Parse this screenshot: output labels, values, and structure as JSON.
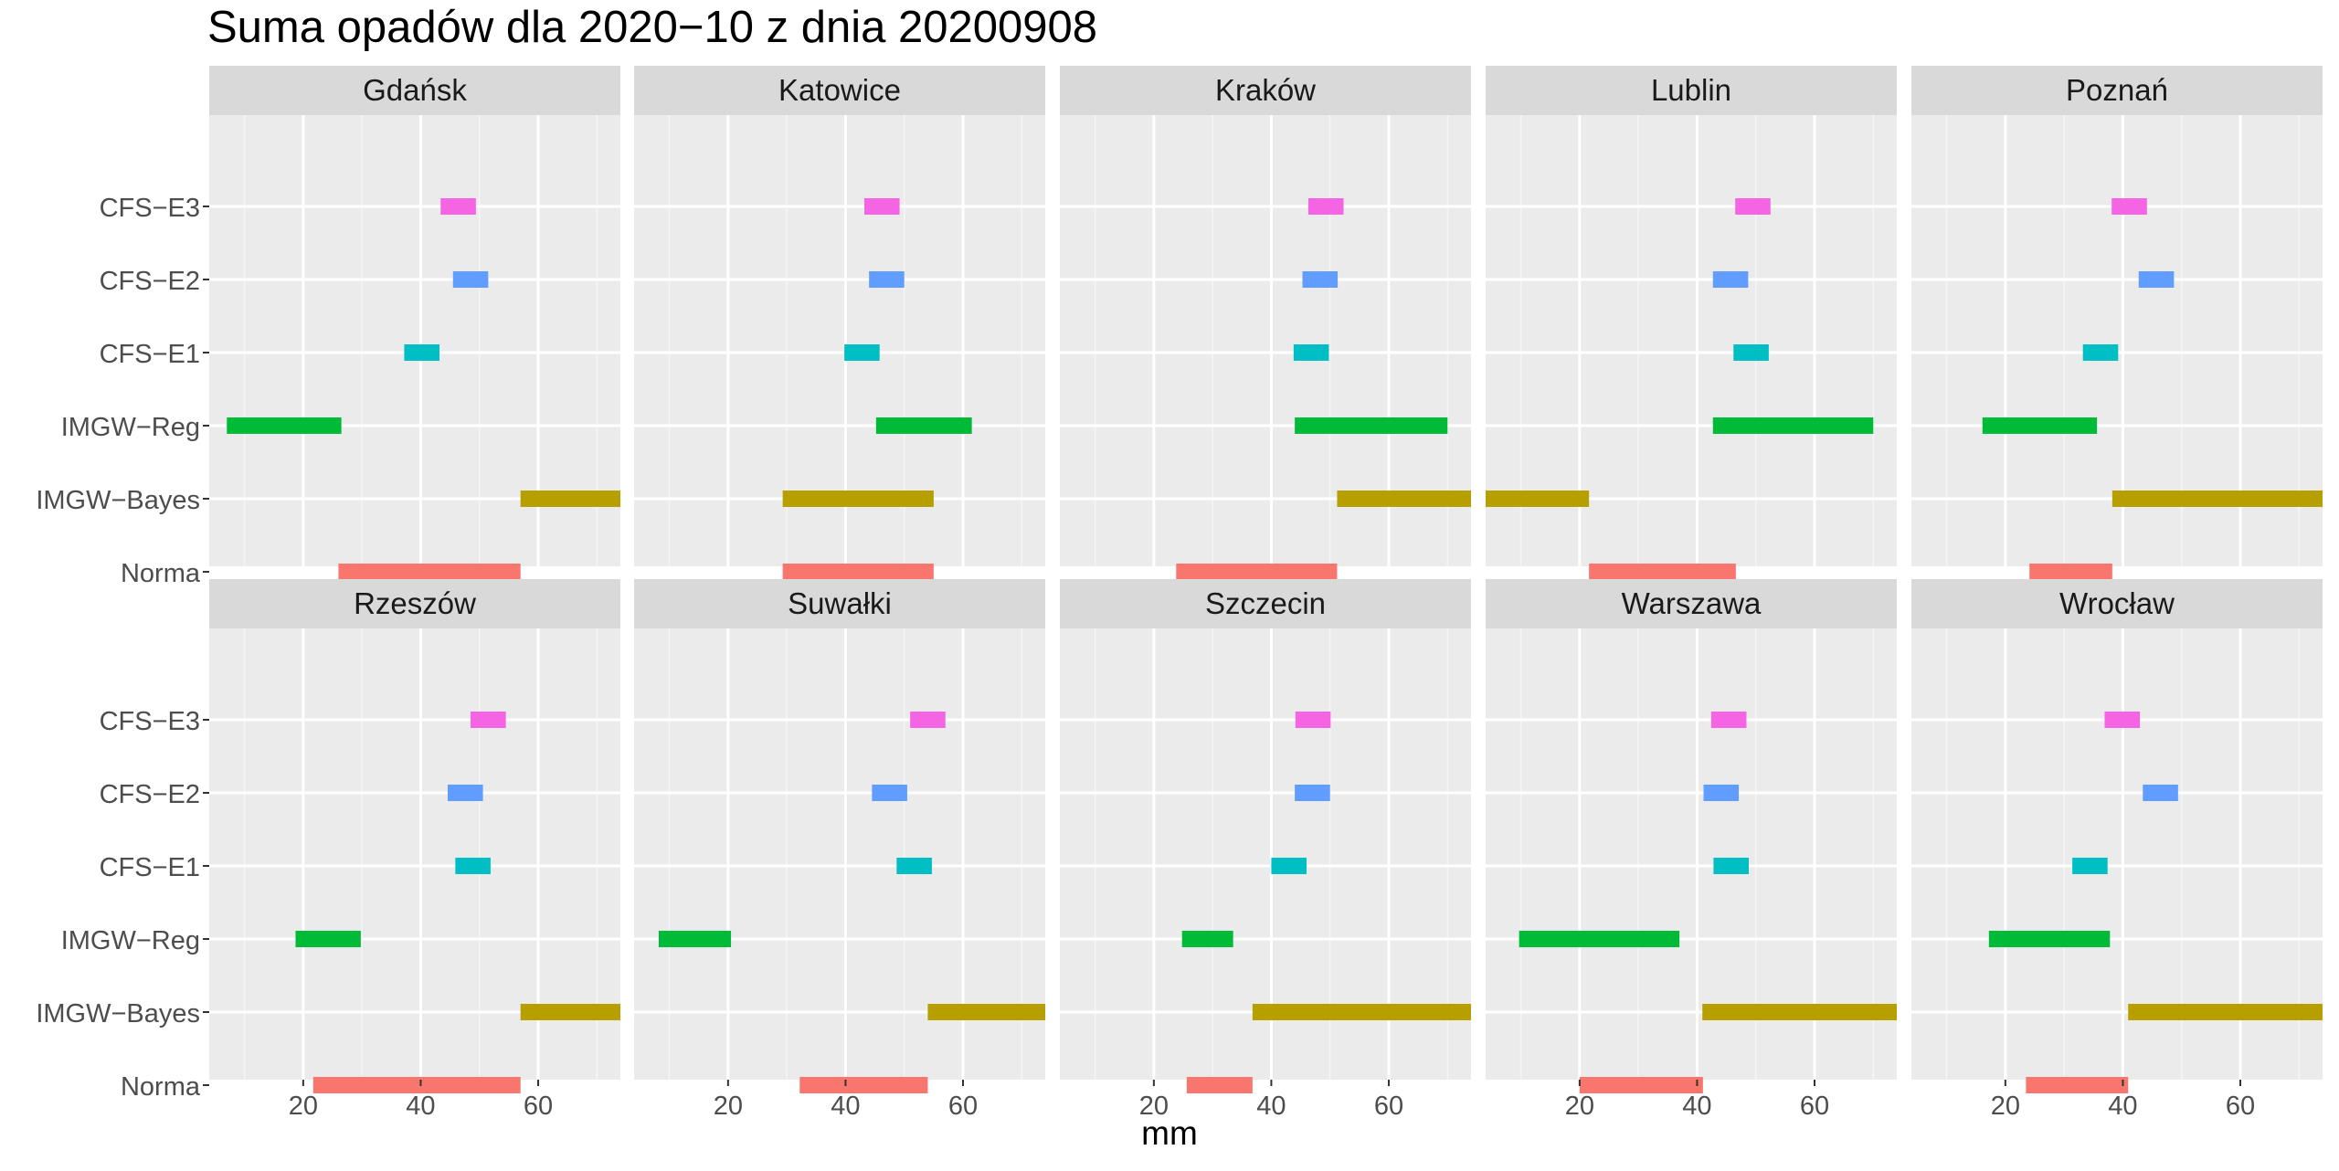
{
  "chart_data": {
    "type": "bar",
    "subtype": "faceted-range",
    "title": "Suma opadów dla 2020−10 z dnia 20200908",
    "xlabel": "mm",
    "ylabel": "",
    "xlim": [
      4,
      74
    ],
    "xticks": [
      20,
      40,
      60
    ],
    "grid": true,
    "legend": "none",
    "categories": [
      "CFS−E3",
      "CFS−E2",
      "CFS−E1",
      "IMGW−Reg",
      "IMGW−Bayes",
      "Norma"
    ],
    "colors": {
      "CFS−E3": "#F564E3",
      "CFS−E2": "#619CFF",
      "CFS−E1": "#00BFC4",
      "IMGW−Reg": "#00BA38",
      "IMGW−Bayes": "#B79F00",
      "Norma": "#F8766D"
    },
    "panels": [
      {
        "name": "Gdańsk",
        "ranges": {
          "CFS−E3": [
            43.4,
            49.4
          ],
          "CFS−E2": [
            45.5,
            51.5
          ],
          "CFS−E1": [
            37.2,
            43.2
          ],
          "IMGW−Reg": [
            7.0,
            26.5
          ],
          "IMGW−Bayes": [
            57.0,
            74.0
          ],
          "Norma": [
            26.0,
            57.0
          ]
        }
      },
      {
        "name": "Katowice",
        "ranges": {
          "CFS−E3": [
            43.2,
            49.2
          ],
          "CFS−E2": [
            44.0,
            50.0
          ],
          "CFS−E1": [
            39.8,
            45.8
          ],
          "IMGW−Reg": [
            45.2,
            61.5
          ],
          "IMGW−Bayes": [
            29.3,
            55.0
          ],
          "Norma": [
            29.3,
            55.0
          ]
        }
      },
      {
        "name": "Kraków",
        "ranges": {
          "CFS−E3": [
            46.3,
            52.3
          ],
          "CFS−E2": [
            45.3,
            51.3
          ],
          "CFS−E1": [
            43.8,
            49.8
          ],
          "IMGW−Reg": [
            44.0,
            70.0
          ],
          "IMGW−Bayes": [
            51.2,
            74.0
          ],
          "Norma": [
            23.8,
            51.2
          ]
        }
      },
      {
        "name": "Lublin",
        "ranges": {
          "CFS−E3": [
            46.5,
            52.5
          ],
          "CFS−E2": [
            42.7,
            48.7
          ],
          "CFS−E1": [
            46.2,
            52.2
          ],
          "IMGW−Reg": [
            42.7,
            70.0
          ],
          "IMGW−Bayes": [
            4.0,
            21.6
          ],
          "Norma": [
            21.6,
            46.6
          ]
        }
      },
      {
        "name": "Poznań",
        "ranges": {
          "CFS−E3": [
            38.1,
            44.1
          ],
          "CFS−E2": [
            42.7,
            48.7
          ],
          "CFS−E1": [
            33.2,
            39.2
          ],
          "IMGW−Reg": [
            16.1,
            35.6
          ],
          "IMGW−Bayes": [
            38.2,
            74.0
          ],
          "Norma": [
            24.1,
            38.2
          ]
        }
      },
      {
        "name": "Rzeszów",
        "ranges": {
          "CFS−E3": [
            48.5,
            54.5
          ],
          "CFS−E2": [
            44.6,
            50.6
          ],
          "CFS−E1": [
            45.9,
            51.9
          ],
          "IMGW−Reg": [
            18.7,
            29.8
          ],
          "IMGW−Bayes": [
            57.0,
            74.0
          ],
          "Norma": [
            21.7,
            57.0
          ]
        }
      },
      {
        "name": "Suwałki",
        "ranges": {
          "CFS−E3": [
            51.0,
            57.0
          ],
          "CFS−E2": [
            44.5,
            50.5
          ],
          "CFS−E1": [
            48.7,
            54.7
          ],
          "IMGW−Reg": [
            8.2,
            20.5
          ],
          "IMGW−Bayes": [
            54.0,
            74.0
          ],
          "Norma": [
            32.2,
            54.0
          ]
        }
      },
      {
        "name": "Szczecin",
        "ranges": {
          "CFS−E3": [
            44.1,
            50.1
          ],
          "CFS−E2": [
            44.0,
            50.0
          ],
          "CFS−E1": [
            40.0,
            46.0
          ],
          "IMGW−Reg": [
            24.8,
            33.5
          ],
          "IMGW−Bayes": [
            36.8,
            74.0
          ],
          "Norma": [
            25.6,
            36.8
          ]
        }
      },
      {
        "name": "Warszawa",
        "ranges": {
          "CFS−E3": [
            42.4,
            48.4
          ],
          "CFS−E2": [
            41.1,
            47.1
          ],
          "CFS−E1": [
            42.8,
            48.8
          ],
          "IMGW−Reg": [
            9.7,
            37.0
          ],
          "IMGW−Bayes": [
            40.9,
            74.0
          ],
          "Norma": [
            20.0,
            41.0
          ]
        }
      },
      {
        "name": "Wrocław",
        "ranges": {
          "CFS−E3": [
            36.9,
            42.9
          ],
          "CFS−E2": [
            43.4,
            49.4
          ],
          "CFS−E1": [
            31.4,
            37.4
          ],
          "IMGW−Reg": [
            17.2,
            37.8
          ],
          "IMGW−Bayes": [
            40.9,
            74.0
          ],
          "Norma": [
            23.5,
            40.9
          ]
        }
      }
    ]
  }
}
